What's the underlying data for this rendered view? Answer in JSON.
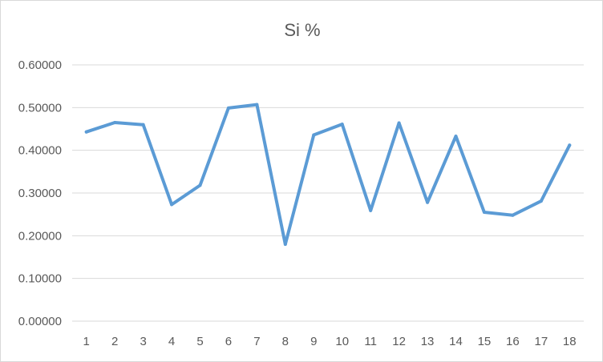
{
  "chart_data": {
    "type": "line",
    "title": "Si %",
    "xlabel": "",
    "ylabel": "",
    "categories": [
      "1",
      "2",
      "3",
      "4",
      "5",
      "6",
      "7",
      "8",
      "9",
      "10",
      "11",
      "12",
      "13",
      "14",
      "15",
      "16",
      "17",
      "18"
    ],
    "y_ticks": [
      "0.00000",
      "0.10000",
      "0.20000",
      "0.30000",
      "0.40000",
      "0.50000",
      "0.60000"
    ],
    "ylim": [
      0,
      0.6
    ],
    "grid": true,
    "legend": "none",
    "series": [
      {
        "color": "#5b9bd5",
        "values": [
          0.443,
          0.465,
          0.46,
          0.273,
          0.318,
          0.499,
          0.507,
          0.18,
          0.436,
          0.461,
          0.259,
          0.464,
          0.278,
          0.433,
          0.255,
          0.248,
          0.281,
          0.412
        ]
      }
    ]
  },
  "colors": {
    "line": "#5b9bd5",
    "gridline": "#d9d9d9",
    "text": "#595959",
    "border": "#d9d9d9"
  }
}
